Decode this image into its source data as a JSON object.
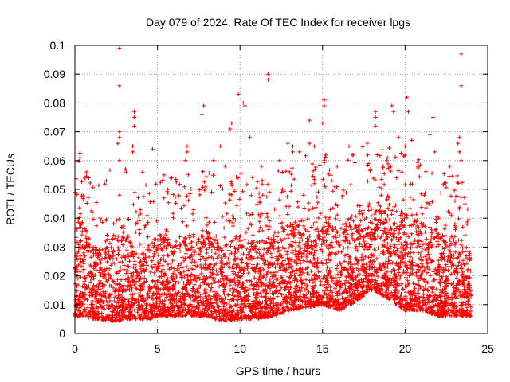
{
  "chart_data": {
    "type": "scatter",
    "title": "Day 079 of 2024, Rate Of TEC Index for receiver lpgs",
    "xlabel": "GPS time / hours",
    "ylabel": "ROTI / TECUs",
    "xlim": [
      0,
      25
    ],
    "ylim": [
      0,
      0.1
    ],
    "x_ticks": [
      0,
      5,
      10,
      15,
      20,
      25
    ],
    "x_tick_labels": [
      "0",
      "5",
      "10",
      "15",
      "20",
      "25"
    ],
    "y_ticks": [
      0,
      0.01,
      0.02,
      0.03,
      0.04,
      0.05,
      0.06,
      0.07,
      0.08,
      0.09,
      0.1
    ],
    "y_tick_labels": [
      "0",
      "0.01",
      "0.02",
      "0.03",
      "0.04",
      "0.05",
      "0.06",
      "0.07",
      "0.08",
      "0.09",
      "0.1"
    ],
    "grid": true,
    "marker": "plus",
    "color": "#ff0000",
    "x_data_max": 24,
    "envelope": [
      [
        0.0,
        0.006,
        0.03
      ],
      [
        0.25,
        0.006,
        0.045
      ],
      [
        0.5,
        0.006,
        0.038
      ],
      [
        1.0,
        0.005,
        0.03
      ],
      [
        1.5,
        0.005,
        0.03
      ],
      [
        2.0,
        0.004,
        0.035
      ],
      [
        2.5,
        0.004,
        0.035
      ],
      [
        3.0,
        0.005,
        0.038
      ],
      [
        3.5,
        0.005,
        0.03
      ],
      [
        4.0,
        0.005,
        0.026
      ],
      [
        4.5,
        0.005,
        0.033
      ],
      [
        5.0,
        0.006,
        0.035
      ],
      [
        6.0,
        0.006,
        0.032
      ],
      [
        7.0,
        0.006,
        0.035
      ],
      [
        8.0,
        0.006,
        0.036
      ],
      [
        9.0,
        0.004,
        0.03
      ],
      [
        10.0,
        0.005,
        0.035
      ],
      [
        11.0,
        0.005,
        0.032
      ],
      [
        12.0,
        0.006,
        0.034
      ],
      [
        13.0,
        0.008,
        0.038
      ],
      [
        14.0,
        0.009,
        0.04
      ],
      [
        15.0,
        0.01,
        0.042
      ],
      [
        16.0,
        0.008,
        0.038
      ],
      [
        17.0,
        0.011,
        0.042
      ],
      [
        18.0,
        0.015,
        0.045
      ],
      [
        19.0,
        0.012,
        0.045
      ],
      [
        20.0,
        0.008,
        0.042
      ],
      [
        21.0,
        0.008,
        0.04
      ],
      [
        22.0,
        0.006,
        0.036
      ],
      [
        23.0,
        0.006,
        0.034
      ],
      [
        24.0,
        0.006,
        0.03
      ]
    ],
    "outliers": [
      [
        2.7,
        0.099
      ],
      [
        2.7,
        0.086
      ],
      [
        23.4,
        0.097
      ],
      [
        23.4,
        0.086
      ],
      [
        11.7,
        0.09
      ],
      [
        11.7,
        0.088
      ],
      [
        9.9,
        0.083
      ],
      [
        10.2,
        0.08
      ],
      [
        10.3,
        0.079
      ],
      [
        15.1,
        0.081
      ],
      [
        15.1,
        0.079
      ],
      [
        19.2,
        0.079
      ],
      [
        19.3,
        0.077
      ],
      [
        20.1,
        0.082
      ],
      [
        20.2,
        0.077
      ],
      [
        7.8,
        0.079
      ],
      [
        7.7,
        0.076
      ],
      [
        3.6,
        0.077
      ],
      [
        3.6,
        0.075
      ],
      [
        3.6,
        0.072
      ],
      [
        9.5,
        0.073
      ],
      [
        9.4,
        0.071
      ],
      [
        14.2,
        0.074
      ],
      [
        15.0,
        0.073
      ],
      [
        18.2,
        0.077
      ],
      [
        18.2,
        0.075
      ],
      [
        18.2,
        0.072
      ],
      [
        21.7,
        0.075
      ],
      [
        21.5,
        0.069
      ],
      [
        23.3,
        0.068
      ],
      [
        23.2,
        0.066
      ],
      [
        23.3,
        0.063
      ],
      [
        0.3,
        0.061
      ],
      [
        2.7,
        0.07
      ],
      [
        2.7,
        0.068
      ],
      [
        2.6,
        0.066
      ],
      [
        3.5,
        0.065
      ],
      [
        3.5,
        0.063
      ],
      [
        4.7,
        0.064
      ],
      [
        6.8,
        0.065
      ],
      [
        6.8,
        0.063
      ],
      [
        8.8,
        0.065
      ],
      [
        12.9,
        0.066
      ],
      [
        13.2,
        0.065
      ],
      [
        13.2,
        0.063
      ],
      [
        14.2,
        0.066
      ],
      [
        14.5,
        0.065
      ],
      [
        15.2,
        0.062
      ],
      [
        16.6,
        0.065
      ],
      [
        17.7,
        0.066
      ],
      [
        18.3,
        0.062
      ],
      [
        19.6,
        0.068
      ],
      [
        20.4,
        0.067
      ],
      [
        21.8,
        0.063
      ],
      [
        23.4,
        0.06
      ],
      [
        2.7,
        0.06
      ],
      [
        6.7,
        0.06
      ],
      [
        10.6,
        0.068
      ],
      [
        13.6,
        0.063
      ],
      [
        16.8,
        0.062
      ],
      [
        18.9,
        0.06
      ],
      [
        20.0,
        0.065
      ],
      [
        22.7,
        0.058
      ],
      [
        1.9,
        0.053
      ],
      [
        4.1,
        0.056
      ],
      [
        5.4,
        0.055
      ],
      [
        8.4,
        0.06
      ],
      [
        9.1,
        0.058
      ],
      [
        11.3,
        0.058
      ],
      [
        12.4,
        0.06
      ],
      [
        17.9,
        0.057
      ],
      [
        19.8,
        0.056
      ]
    ]
  }
}
